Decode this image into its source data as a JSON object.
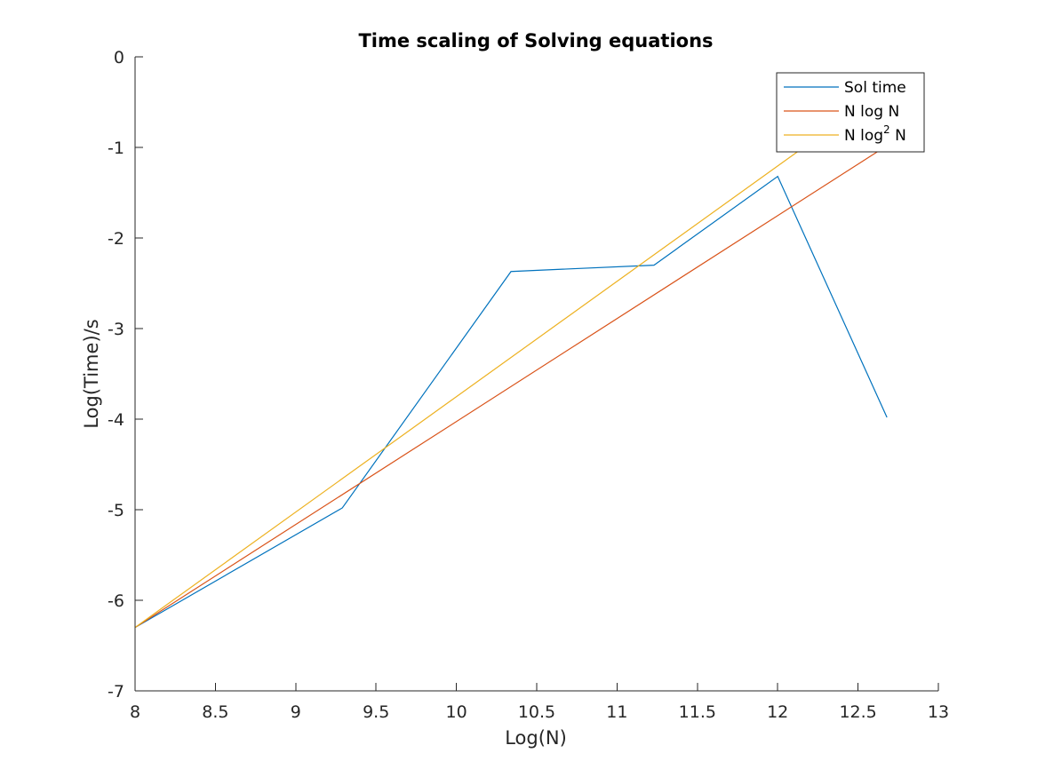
{
  "chart_data": {
    "type": "line",
    "title": "Time scaling of Solving equations",
    "xlabel": "Log(N)",
    "ylabel": "Log(Time)/s",
    "xlim": [
      8,
      13
    ],
    "ylim": [
      -7,
      0
    ],
    "xticks": [
      8,
      8.5,
      9,
      9.5,
      10,
      10.5,
      11,
      11.5,
      12,
      12.5,
      13
    ],
    "xtick_labels": [
      "8",
      "8.5",
      "9",
      "9.5",
      "10",
      "10.5",
      "11",
      "11.5",
      "12",
      "12.5",
      "13"
    ],
    "yticks": [
      0,
      -1,
      -2,
      -3,
      -4,
      -5,
      -6,
      -7
    ],
    "ytick_labels": [
      "0",
      "-1",
      "-2",
      "-3",
      "-4",
      "-5",
      "-6",
      "-7"
    ],
    "grid": false,
    "legend_position": "top-right",
    "series": [
      {
        "name": "Sol time",
        "color": "#0072BD",
        "x": [
          8,
          9.29,
          10.34,
          11.23,
          12.0,
          12.68
        ],
        "y": [
          -6.3,
          -4.98,
          -2.37,
          -2.3,
          -1.32,
          -3.98
        ]
      },
      {
        "name": "N log N",
        "color": "#D95319",
        "x": [
          8,
          12.68
        ],
        "y": [
          -6.3,
          -0.98
        ]
      },
      {
        "name": "N log² N",
        "legend_main": "N log",
        "legend_sup": "2",
        "legend_tail": " N",
        "color": "#EDB120",
        "x": [
          8,
          12.2
        ],
        "y": [
          -6.3,
          -0.95
        ]
      }
    ]
  }
}
